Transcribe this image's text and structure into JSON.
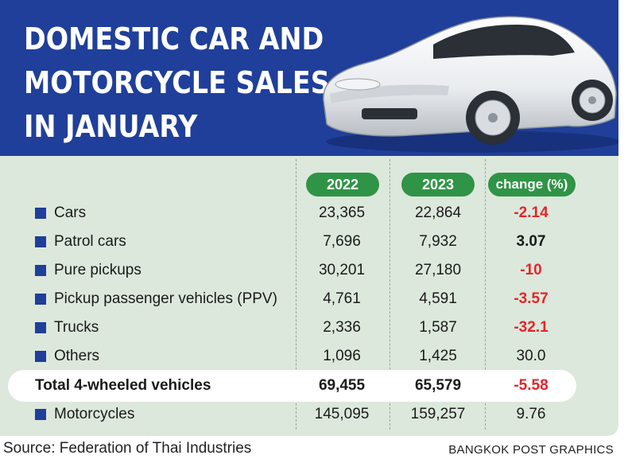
{
  "title_lines": [
    "DOMESTIC CAR AND",
    "MOTORCYCLE SALES",
    "IN JANUARY"
  ],
  "colors": {
    "header": "#1f3f9a",
    "pill": "#2f9446",
    "negative": "#e3262a",
    "table_bg": "#dce8dc"
  },
  "columns": [
    "2022",
    "2023",
    "change (%)"
  ],
  "rows": [
    {
      "label": "Cars",
      "v2022": "23,365",
      "v2023": "22,864",
      "change": "-2.14"
    },
    {
      "label": "Patrol cars",
      "v2022": "7,696",
      "v2023": "7,932",
      "change": "3.07"
    },
    {
      "label": "Pure pickups",
      "v2022": "30,201",
      "v2023": "27,180",
      "change": "-10"
    },
    {
      "label": "Pickup passenger vehicles (PPV)",
      "v2022": "4,761",
      "v2023": "4,591",
      "change": "-3.57"
    },
    {
      "label": "Trucks",
      "v2022": "2,336",
      "v2023": "1,587",
      "change": "-32.1"
    },
    {
      "label": "Others",
      "v2022": "1,096",
      "v2023": "1,425",
      "change": "30.0"
    },
    {
      "label": "Total 4-wheeled vehicles",
      "v2022": "69,455",
      "v2023": "65,579",
      "change": "-5.58"
    },
    {
      "label": "Motorcycles",
      "v2022": "145,095",
      "v2023": "159,257",
      "change": "9.76"
    }
  ],
  "source": "Source: Federation of Thai Industries",
  "credit": "BANGKOK POST GRAPHICS",
  "chart_data": {
    "type": "table",
    "title": "DOMESTIC CAR AND MOTORCYCLE SALES IN JANUARY",
    "columns": [
      "2022",
      "2023",
      "change (%)"
    ],
    "categories": [
      "Cars",
      "Patrol cars",
      "Pure pickups",
      "Pickup passenger vehicles (PPV)",
      "Trucks",
      "Others",
      "Total 4-wheeled vehicles",
      "Motorcycles"
    ],
    "series": [
      {
        "name": "2022",
        "values": [
          23365,
          7696,
          30201,
          4761,
          2336,
          1096,
          69455,
          145095
        ]
      },
      {
        "name": "2023",
        "values": [
          22864,
          7932,
          27180,
          4591,
          1587,
          1425,
          65579,
          159257
        ]
      },
      {
        "name": "change (%)",
        "values": [
          -2.14,
          3.07,
          -10,
          -3.57,
          -32.1,
          30.0,
          -5.58,
          9.76
        ]
      }
    ]
  }
}
